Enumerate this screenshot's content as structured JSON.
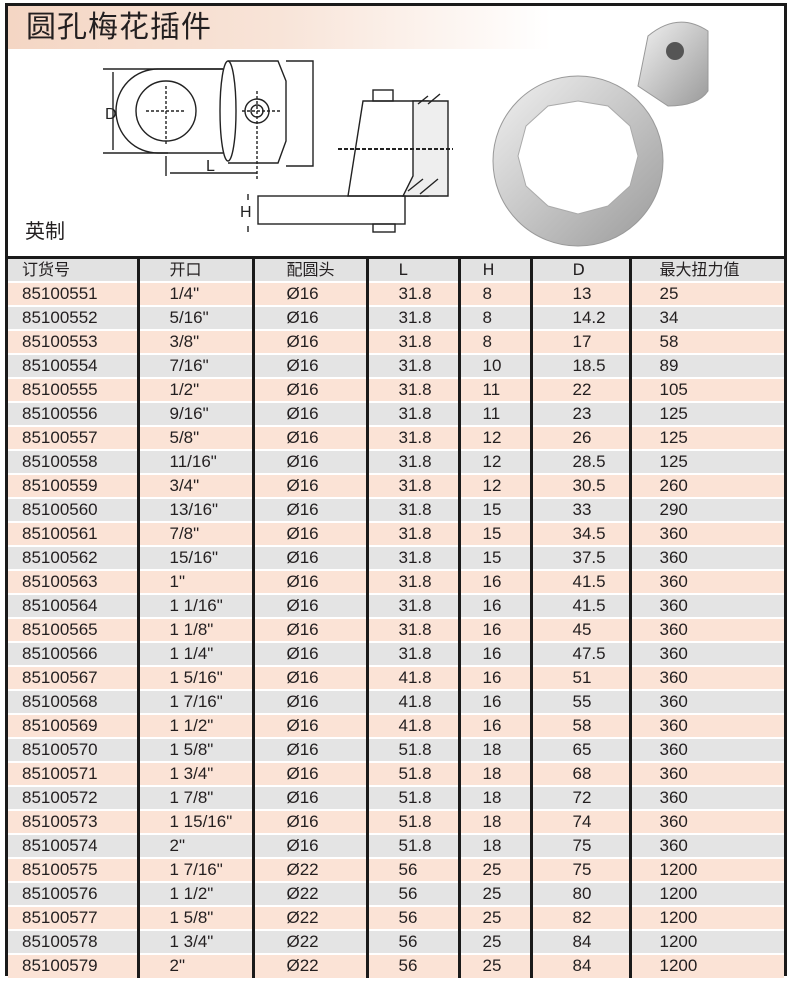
{
  "header": {
    "title": "圆孔梅花插件",
    "subtitle": "英制"
  },
  "diagram": {
    "labels": {
      "d": "D",
      "l": "L",
      "h": "H"
    }
  },
  "colors": {
    "title_bg": "#f4d6c4",
    "row_odd": "#fbe3d6",
    "row_even": "#e4e4e4",
    "border": "#1a1a1a"
  },
  "table": {
    "columns": [
      "订货号",
      "开口",
      "配圆头",
      "L",
      "H",
      "D",
      "最大扭力值"
    ],
    "rows": [
      [
        "85100551",
        "1/4\"",
        "Ø16",
        "31.8",
        "8",
        "13",
        "25"
      ],
      [
        "85100552",
        "5/16\"",
        "Ø16",
        "31.8",
        "8",
        "14.2",
        "34"
      ],
      [
        "85100553",
        "3/8\"",
        "Ø16",
        "31.8",
        "8",
        "17",
        "58"
      ],
      [
        "85100554",
        "7/16\"",
        "Ø16",
        "31.8",
        "10",
        "18.5",
        "89"
      ],
      [
        "85100555",
        "1/2\"",
        "Ø16",
        "31.8",
        "11",
        "22",
        "105"
      ],
      [
        "85100556",
        "9/16\"",
        "Ø16",
        "31.8",
        "11",
        "23",
        "125"
      ],
      [
        "85100557",
        "5/8\"",
        "Ø16",
        "31.8",
        "12",
        "26",
        "125"
      ],
      [
        "85100558",
        "11/16\"",
        "Ø16",
        "31.8",
        "12",
        "28.5",
        "125"
      ],
      [
        "85100559",
        "3/4\"",
        "Ø16",
        "31.8",
        "12",
        "30.5",
        "260"
      ],
      [
        "85100560",
        "13/16\"",
        "Ø16",
        "31.8",
        "15",
        "33",
        "290"
      ],
      [
        "85100561",
        "7/8\"",
        "Ø16",
        "31.8",
        "15",
        "34.5",
        "360"
      ],
      [
        "85100562",
        "15/16\"",
        "Ø16",
        "31.8",
        "15",
        "37.5",
        "360"
      ],
      [
        "85100563",
        "1\"",
        "Ø16",
        "31.8",
        "16",
        "41.5",
        "360"
      ],
      [
        "85100564",
        "1 1/16\"",
        "Ø16",
        "31.8",
        "16",
        "41.5",
        "360"
      ],
      [
        "85100565",
        "1 1/8\"",
        "Ø16",
        "31.8",
        "16",
        "45",
        "360"
      ],
      [
        "85100566",
        "1 1/4\"",
        "Ø16",
        "31.8",
        "16",
        "47.5",
        "360"
      ],
      [
        "85100567",
        "1 5/16\"",
        "Ø16",
        "41.8",
        "16",
        "51",
        "360"
      ],
      [
        "85100568",
        "1 7/16\"",
        "Ø16",
        "41.8",
        "16",
        "55",
        "360"
      ],
      [
        "85100569",
        "1 1/2\"",
        "Ø16",
        "41.8",
        "16",
        "58",
        "360"
      ],
      [
        "85100570",
        "1 5/8\"",
        "Ø16",
        "51.8",
        "18",
        "65",
        "360"
      ],
      [
        "85100571",
        "1 3/4\"",
        "Ø16",
        "51.8",
        "18",
        "68",
        "360"
      ],
      [
        "85100572",
        "1 7/8\"",
        "Ø16",
        "51.8",
        "18",
        "72",
        "360"
      ],
      [
        "85100573",
        "1 15/16\"",
        "Ø16",
        "51.8",
        "18",
        "74",
        "360"
      ],
      [
        "85100574",
        "2\"",
        "Ø16",
        "51.8",
        "18",
        "75",
        "360"
      ],
      [
        "85100575",
        "1 7/16\"",
        "Ø22",
        "56",
        "25",
        "75",
        "1200"
      ],
      [
        "85100576",
        "1 1/2\"",
        "Ø22",
        "56",
        "25",
        "80",
        "1200"
      ],
      [
        "85100577",
        "1 5/8\"",
        "Ø22",
        "56",
        "25",
        "82",
        "1200"
      ],
      [
        "85100578",
        "1 3/4\"",
        "Ø22",
        "56",
        "25",
        "84",
        "1200"
      ],
      [
        "85100579",
        "2\"",
        "Ø22",
        "56",
        "25",
        "84",
        "1200"
      ]
    ]
  }
}
